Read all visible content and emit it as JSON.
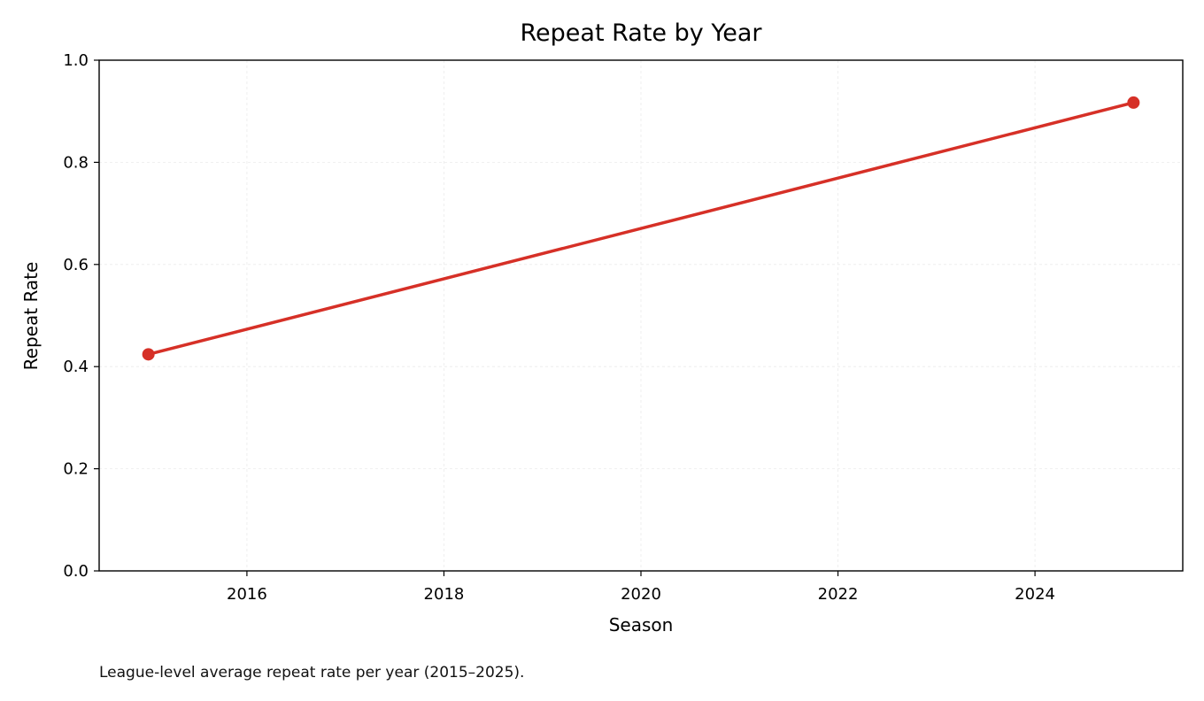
{
  "chart_data": {
    "type": "line",
    "title": "Repeat Rate by Year",
    "xlabel": "Season",
    "ylabel": "Repeat Rate",
    "caption": "League-level average repeat rate per year (2015–2025).",
    "x": [
      2015,
      2025
    ],
    "y": [
      0.424,
      0.917
    ],
    "xlim": [
      2014.5,
      2025.5
    ],
    "ylim": [
      0.0,
      1.0
    ],
    "xticks": [
      2016,
      2018,
      2020,
      2022,
      2024
    ],
    "xtick_labels": [
      "2016",
      "2018",
      "2020",
      "2022",
      "2024"
    ],
    "yticks": [
      0.0,
      0.2,
      0.4,
      0.6,
      0.8,
      1.0
    ],
    "ytick_labels": [
      "0.0",
      "0.2",
      "0.4",
      "0.6",
      "0.8",
      "1.0"
    ],
    "grid": true,
    "legend": "none",
    "line_color": "#d63027",
    "marker": "circle"
  }
}
